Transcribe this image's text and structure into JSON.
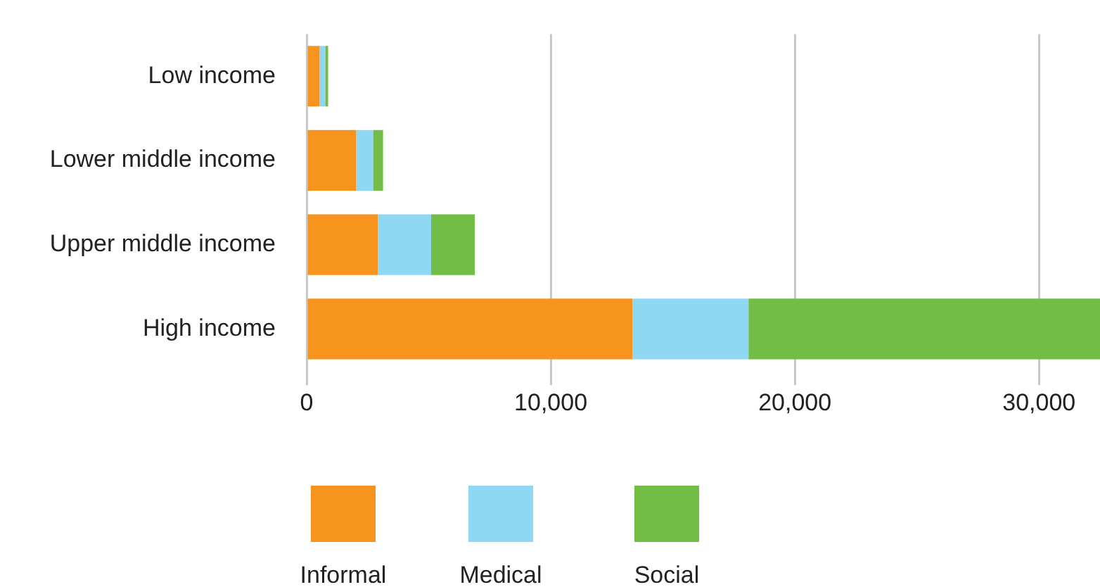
{
  "chart_data": {
    "type": "bar",
    "orientation": "horizontal",
    "stacked": true,
    "categories": [
      "Low income",
      "Lower middle income",
      "Upper middle income",
      "High income"
    ],
    "series": [
      {
        "name": "Informal",
        "color": "#f7941d",
        "values": [
          530,
          2030,
          2920,
          13340
        ]
      },
      {
        "name": "Medical",
        "color": "#8fd8f4",
        "values": [
          230,
          690,
          2180,
          4760
        ]
      },
      {
        "name": "Social",
        "color": "#72bd45",
        "values": [
          120,
          410,
          1790,
          14400
        ]
      }
    ],
    "xlim": [
      0,
      32500
    ],
    "xticks": [
      {
        "value": 0,
        "label": "0"
      },
      {
        "value": 10000,
        "label": "10,000"
      },
      {
        "value": 20000,
        "label": "20,000"
      },
      {
        "value": 30000,
        "label": "30,000"
      }
    ],
    "grid": "x",
    "legend": "bottom"
  }
}
